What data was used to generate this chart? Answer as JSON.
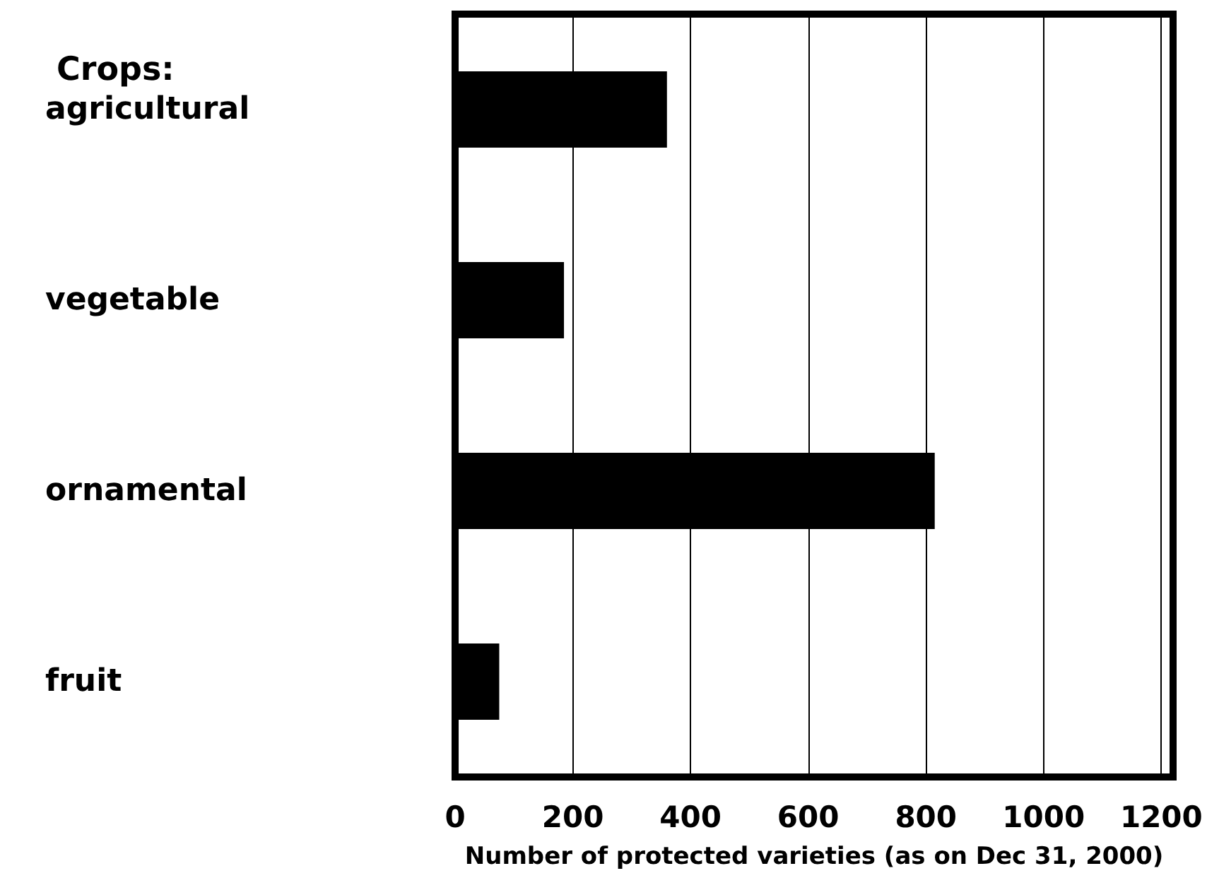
{
  "chart_data": {
    "type": "bar",
    "orientation": "horizontal",
    "ylabel": "Crops:",
    "xlabel": "Number of protected varieties (as on Dec 31, 2000)",
    "categories": [
      "agricultural",
      "vegetable",
      "ornamental",
      "fruit"
    ],
    "values": [
      360,
      185,
      815,
      75
    ],
    "color": "#000000",
    "xlim": [
      0,
      1220
    ],
    "xticks": [
      0,
      200,
      400,
      600,
      800,
      1000,
      1200
    ],
    "grid": "x"
  }
}
